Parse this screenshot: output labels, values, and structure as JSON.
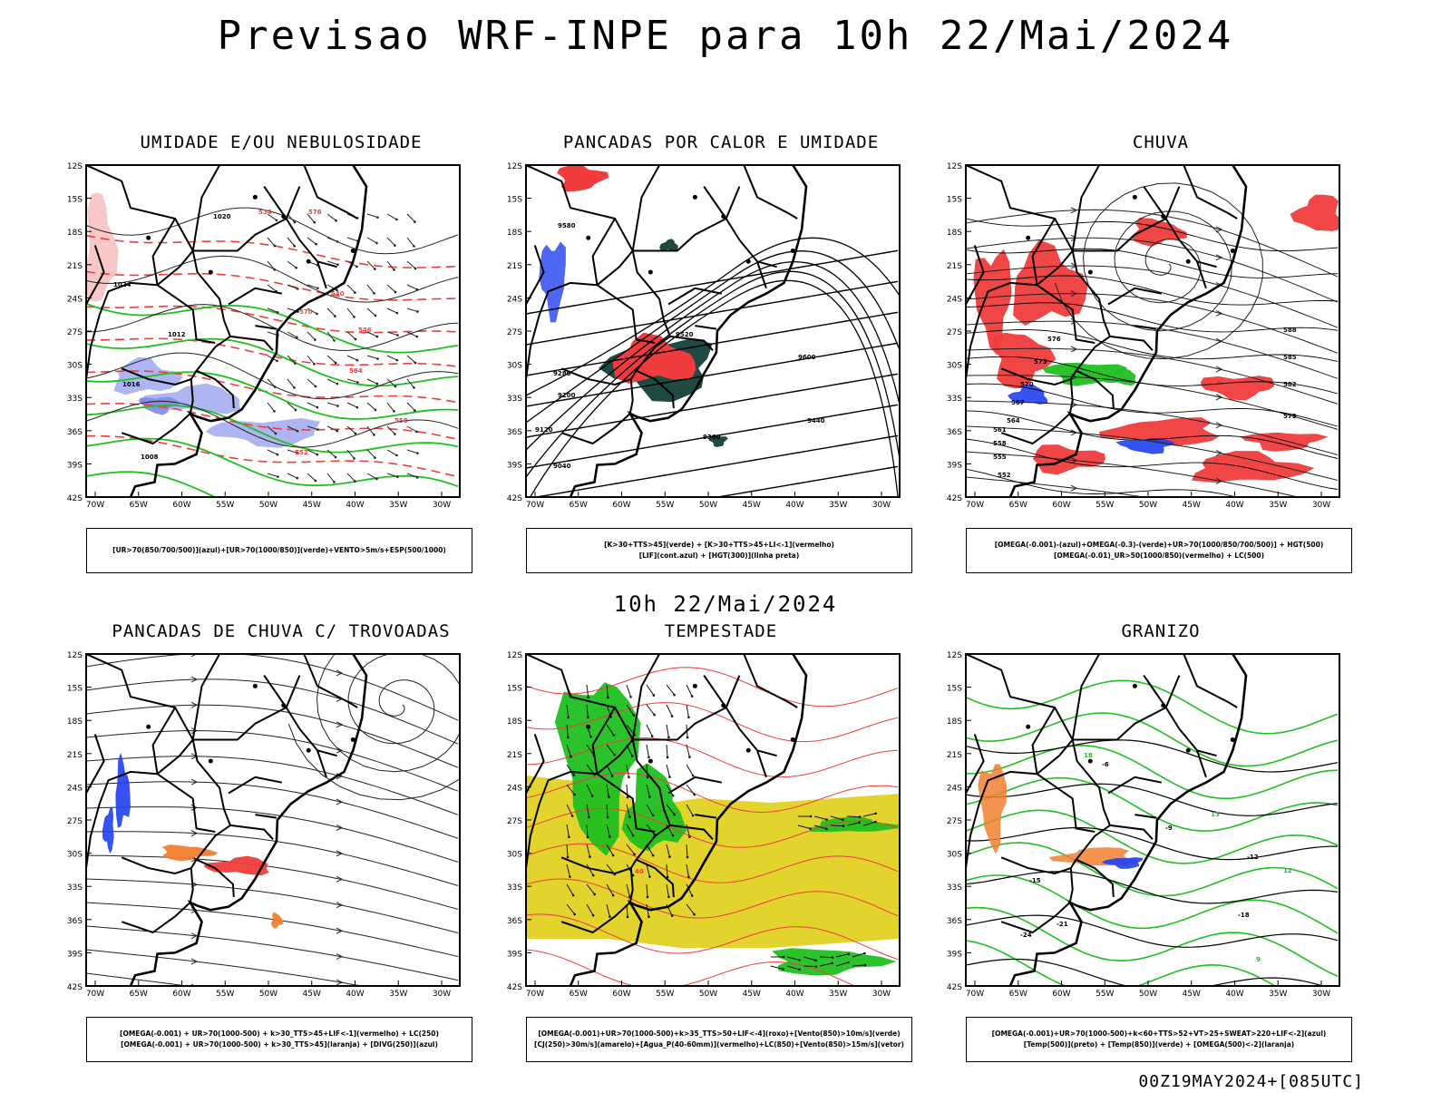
{
  "title": "Previsao WRF-INPE  para 10h 22/Mai/2024",
  "mid_date": "10h 22/Mai/2024",
  "footer": "00Z19MAY2024+[085UTC]",
  "lat_labels": [
    "12S",
    "15S",
    "18S",
    "21S",
    "24S",
    "27S",
    "30S",
    "33S",
    "36S",
    "39S",
    "42S"
  ],
  "lon_labels": [
    "70W",
    "65W",
    "60W",
    "55W",
    "50W",
    "45W",
    "40W",
    "35W",
    "30W"
  ],
  "colors": {
    "red": "#f03c3c",
    "green": "#20c020",
    "blue": "#2040f0",
    "lavender": "#a0a8f0",
    "yellow": "#e2d42c",
    "orange": "#f08030",
    "dark": "#1f4a44"
  },
  "panels": [
    {
      "title": "UMIDADE E/OU NEBULOSIDADE",
      "legend": [
        "[UR>70(850/700/500)](azul)+[UR>70(1000/850)](verde)+VENTO>5m/s+ESP(500/1000)"
      ],
      "labels": [
        "1020",
        "1012",
        "1016",
        "1024",
        "576",
        "570",
        "564",
        "558",
        "552",
        "546",
        "540",
        "534",
        "1008"
      ]
    },
    {
      "title": "PANCADAS POR CALOR E UMIDADE",
      "legend": [
        "[K>30+TTS>45](verde) + [K>30+TTS>45+LI<-1](vermelho)",
        "[LIF](cont.azul) + [HGT(300)](linha preta)"
      ],
      "labels": [
        "9600",
        "9520",
        "9440",
        "9360",
        "9280",
        "9200",
        "9120",
        "9040",
        "9580"
      ]
    },
    {
      "title": "CHUVA",
      "legend": [
        "[OMEGA(-0.001)-(azul)+OMEGA(-0.3)-(verde)+UR>70(1000/850/700/500)] + HGT(500)",
        "[OMEGA(-0.01)_UR>50(1000/850)(vermelho) + LC(500)"
      ],
      "labels": [
        "588",
        "585",
        "582",
        "579",
        "576",
        "573",
        "570",
        "567",
        "564",
        "561",
        "558",
        "555",
        "552"
      ]
    },
    {
      "title": "PANCADAS DE CHUVA C/ TROVOADAS",
      "legend": [
        "[OMEGA(-0.001) + UR>70(1000-500) + k>30_TTS>45+LIF<-1](vermelho) + LC(250)",
        "[OMEGA(-0.001) + UR>70(1000-500) + k>30_TTS>45](laranja) + [DIVG(250)](azul)"
      ],
      "labels": []
    },
    {
      "title": "TEMPESTADE",
      "legend": [
        "[OMEGA(-0.001)+UR>70(1000-500)+k>35_TTS>50+LIF<-4](roxo)+[Vento(850)>10m/s](verde)",
        "[CJ(250)>30m/s](amarelo)+[Agua_P(40-60mm)](vermelho)+LC(850)+[Vento(850)>15m/s](vetor)"
      ],
      "labels": [
        "40"
      ]
    },
    {
      "title": "GRANIZO",
      "legend": [
        "[OMEGA(-0.001)+UR>70(1000-500)+k<60+TTS>52+VT>25+SWEAT>220+LIF<-2](azul)",
        "[Temp(500)](preto) + [Temp(850)](verde) + [OMEGA(500)<-2](laranja)"
      ],
      "labels": [
        "-6",
        "-9",
        "-12",
        "-15",
        "-18",
        "-21",
        "-24",
        "12",
        "15",
        "18",
        "9"
      ]
    }
  ]
}
